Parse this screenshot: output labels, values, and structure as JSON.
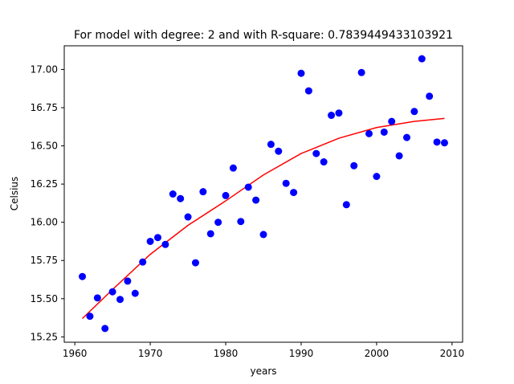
{
  "chart_data": {
    "type": "scatter",
    "title": "For model with degree: 2 and with R-square: 0.7839449433103921",
    "xlabel": "years",
    "ylabel": "Celsius",
    "xlim": [
      1958.6,
      2011.4
    ],
    "ylim": [
      15.215,
      17.155
    ],
    "xticks": [
      1960,
      1970,
      1980,
      1990,
      2000,
      2010
    ],
    "yticks": [
      15.25,
      15.5,
      15.75,
      16.0,
      16.25,
      16.5,
      16.75,
      17.0
    ],
    "grid": false,
    "legend": "none",
    "colors": {
      "points": "#0000ff",
      "fit": "#ff0000"
    },
    "series": [
      {
        "kind": "scatter",
        "x": [
          1961,
          1962,
          1963,
          1964,
          1965,
          1966,
          1967,
          1968,
          1969,
          1970,
          1971,
          1972,
          1973,
          1974,
          1975,
          1976,
          1977,
          1978,
          1979,
          1980,
          1981,
          1982,
          1983,
          1984,
          1985,
          1986,
          1987,
          1988,
          1989,
          1990,
          1991,
          1992,
          1993,
          1994,
          1995,
          1996,
          1997,
          1998,
          1999,
          2000,
          2001,
          2002,
          2003,
          2004,
          2005,
          2006,
          2007,
          2008,
          2009
        ],
        "y": [
          15.645,
          15.385,
          15.505,
          15.305,
          15.545,
          15.495,
          15.615,
          15.535,
          15.74,
          15.875,
          15.9,
          15.855,
          16.185,
          16.155,
          16.035,
          15.735,
          16.2,
          15.925,
          16.0,
          16.175,
          16.355,
          16.005,
          16.23,
          16.145,
          15.92,
          16.51,
          16.465,
          16.255,
          16.195,
          16.975,
          16.86,
          16.45,
          16.395,
          16.7,
          16.715,
          16.115,
          16.37,
          16.98,
          16.58,
          16.3,
          16.59,
          16.66,
          16.435,
          16.555,
          16.725,
          17.07,
          16.825,
          16.525,
          16.52
        ]
      },
      {
        "kind": "line",
        "x": [
          1961,
          1965,
          1970,
          1975,
          1980,
          1985,
          1990,
          1995,
          2000,
          2005,
          2009
        ],
        "y": [
          15.37,
          15.56,
          15.79,
          15.98,
          16.14,
          16.31,
          16.45,
          16.55,
          16.62,
          16.66,
          16.68
        ]
      }
    ]
  }
}
